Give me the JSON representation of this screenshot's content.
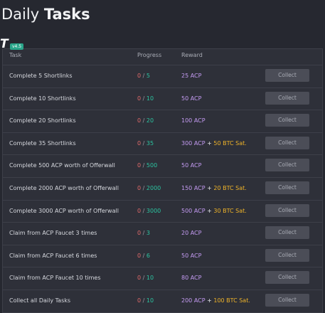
{
  "header": {
    "title_light": "Daily",
    "title_bold": "Tasks",
    "logo": "T",
    "version": "v4.5"
  },
  "table": {
    "columns": [
      "Task",
      "Progress",
      "Reward"
    ],
    "separator": "/",
    "plus": "+",
    "rows": [
      {
        "task": "Complete 5 Shortlinks",
        "done": 0,
        "total": 5,
        "reward": "25 ACP",
        "action": "Collect"
      },
      {
        "task": "Complete 10 Shortlinks",
        "done": 0,
        "total": 10,
        "reward": "50 ACP",
        "action": "Collect"
      },
      {
        "task": "Complete 20 Shortlinks",
        "done": 0,
        "total": 20,
        "reward": "100 ACP",
        "action": "Collect"
      },
      {
        "task": "Complete 35 Shortlinks",
        "done": 0,
        "total": 35,
        "reward": "300 ACP",
        "bonus": "50 BTC Sat.",
        "action": "Collect"
      },
      {
        "task": "Complete 500 ACP worth of Offerwall",
        "done": 0,
        "total": 500,
        "reward": "50 ACP",
        "action": "Collect"
      },
      {
        "task": "Complete 2000 ACP worth of Offerwall",
        "done": 0,
        "total": 2000,
        "reward": "150 ACP",
        "bonus": "20 BTC Sat.",
        "action": "Collect"
      },
      {
        "task": "Complete 3000 ACP worth of Offerwall",
        "done": 0,
        "total": 3000,
        "reward": "500 ACP",
        "bonus": "30 BTC Sat.",
        "action": "Collect"
      },
      {
        "task": "Claim from ACP Faucet 3 times",
        "done": 0,
        "total": 3,
        "reward": "20 ACP",
        "action": "Collect"
      },
      {
        "task": "Claim from ACP Faucet 6 times",
        "done": 0,
        "total": 6,
        "reward": "50 ACP",
        "action": "Collect"
      },
      {
        "task": "Claim from ACP Faucet 10 times",
        "done": 0,
        "total": 10,
        "reward": "80 ACP",
        "action": "Collect"
      },
      {
        "task": "Collect all Daily Tasks",
        "done": 0,
        "total": 10,
        "reward": "200 ACP",
        "bonus": "100 BTC Sat.",
        "action": "Collect"
      }
    ]
  }
}
